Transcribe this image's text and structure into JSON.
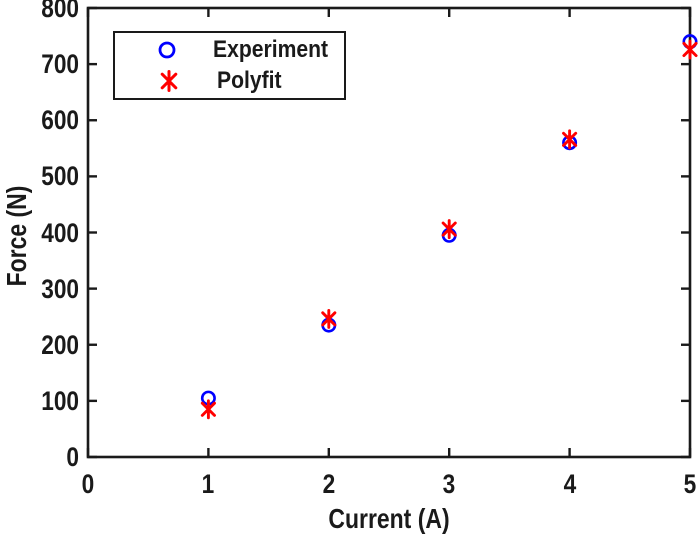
{
  "chart_data": {
    "type": "scatter",
    "title": "",
    "xlabel": "Current (A)",
    "ylabel": "Force (N)",
    "xlim": [
      0,
      5
    ],
    "ylim": [
      0,
      800
    ],
    "x_ticks": [
      0,
      1,
      2,
      3,
      4,
      5
    ],
    "y_ticks": [
      0,
      100,
      200,
      300,
      400,
      500,
      600,
      700,
      800
    ],
    "grid": false,
    "box": true,
    "tick_direction": "in",
    "axis_color": "#1a1a1a",
    "background": "#ffffff",
    "x": [
      1,
      2,
      3,
      4,
      5
    ],
    "series": [
      {
        "name": "Experiment",
        "marker": "circle",
        "color": "#0000ff",
        "values": [
          105,
          235,
          395,
          560,
          740
        ]
      },
      {
        "name": "Polyfit",
        "marker": "asterisk",
        "color": "#ff0000",
        "values": [
          85,
          246,
          406,
          566,
          726
        ]
      }
    ],
    "legend": {
      "position": "top-left-inside",
      "entries": [
        "Experiment",
        "Polyfit"
      ]
    }
  }
}
